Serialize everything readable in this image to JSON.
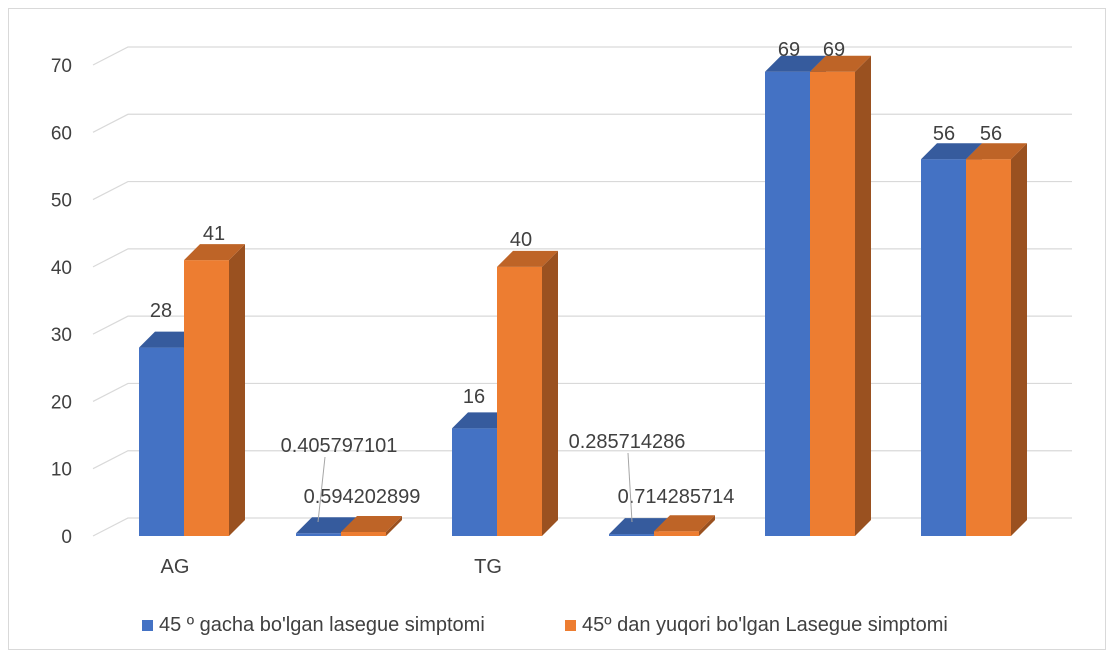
{
  "chart_data": {
    "type": "bar",
    "categories": [
      "AG",
      "",
      "TG",
      "",
      "",
      ""
    ],
    "series": [
      {
        "name": "45 º gacha bo'lgan lasegue simptomi",
        "color": "#4472C4",
        "values": [
          28,
          0.405797101,
          16,
          0.285714286,
          69,
          56
        ],
        "labels": [
          "28",
          "0.405797101",
          "16",
          "0.285714286",
          "69",
          "56"
        ]
      },
      {
        "name": "45º dan yuqori bo'lgan Lasegue simptomi",
        "color": "#ED7D31",
        "values": [
          41,
          0.594202899,
          40,
          0.714285714,
          69,
          56
        ],
        "labels": [
          "41",
          "0.594202899",
          "40",
          "0.714285714",
          "69",
          "56"
        ]
      }
    ],
    "yticks": [
      "0",
      "10",
      "20",
      "30",
      "40",
      "50",
      "60",
      "70"
    ],
    "ylim": [
      0,
      70
    ],
    "grid": true,
    "legend_position": "bottom",
    "style": "3d-clustered-column"
  }
}
